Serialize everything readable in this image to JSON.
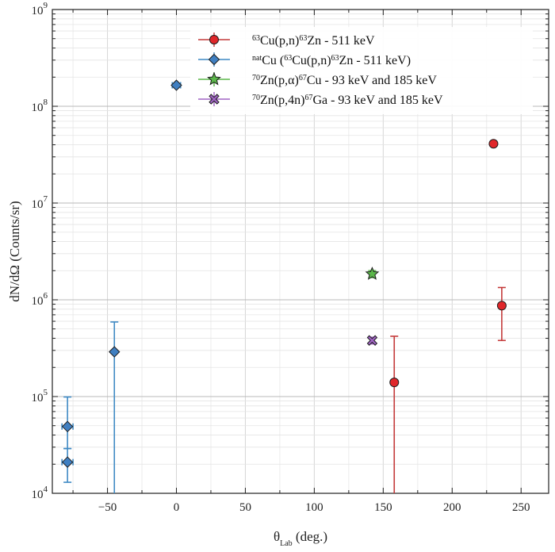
{
  "chart_data": {
    "type": "scatter",
    "xlabel": "θ",
    "xlabel_sub": "Lab",
    "xlabel_unit": " (deg.)",
    "ylabel": "dN/dΩ (Counts/sr)",
    "x_ticks": [
      "−50",
      "0",
      "50",
      "100",
      "150",
      "200",
      "250"
    ],
    "x_tick_values": [
      -50,
      0,
      50,
      100,
      150,
      200,
      250
    ],
    "y_tick_values": [
      10000,
      100000,
      1000000,
      10000000,
      100000000,
      1000000000
    ],
    "y_tick_base": "10",
    "y_tick_exps": [
      "4",
      "5",
      "6",
      "7",
      "8",
      "9"
    ],
    "xlim": [
      -90,
      270
    ],
    "ylim": [
      10000,
      1000000000
    ],
    "yscale": "log",
    "grid": true,
    "legend_position": "top-right",
    "series": [
      {
        "marker": "circle",
        "color": "#e0262a",
        "ecolor": "#c43a3a",
        "legend": [
          {
            "t": "63",
            "s": "sup"
          },
          {
            "t": "Cu(p,n)"
          },
          {
            "t": "63",
            "s": "sup"
          },
          {
            "t": "Zn - 511 keV"
          }
        ],
        "points": [
          {
            "x": 158,
            "y": 140000,
            "ylo": 10000,
            "yhi": 420000
          },
          {
            "x": 230,
            "y": 41000000,
            "ylo": 39000000,
            "yhi": 43000000
          },
          {
            "x": 236,
            "y": 870000,
            "ylo": 380000,
            "yhi": 1340000
          }
        ]
      },
      {
        "marker": "diamond",
        "color": "#3f7fc1",
        "ecolor": "#3f8ac4",
        "legend": [
          {
            "t": "nat",
            "s": "sup"
          },
          {
            "t": "Cu ("
          },
          {
            "t": "63",
            "s": "sup"
          },
          {
            "t": "Cu(p,n)"
          },
          {
            "t": "63",
            "s": "sup"
          },
          {
            "t": "Zn - 511 keV)"
          }
        ],
        "points": [
          {
            "x": -79,
            "y": 49000,
            "ylo": 29000,
            "yhi": 99000,
            "xerr": 4
          },
          {
            "x": -79,
            "y": 21000,
            "ylo": 13000,
            "yhi": 29000,
            "xerr": 4
          },
          {
            "x": -45,
            "y": 290000,
            "ylo": 10000,
            "yhi": 590000
          },
          {
            "x": 0,
            "y": 165000000,
            "ylo": 158000000,
            "yhi": 172000000,
            "xerr": 3
          }
        ]
      },
      {
        "marker": "star",
        "color": "#5bb74a",
        "ecolor": "#5bb74a",
        "legend": [
          {
            "t": "70",
            "s": "sup"
          },
          {
            "t": "Zn(p,α)"
          },
          {
            "t": "67",
            "s": "sup"
          },
          {
            "t": "Cu -  93 keV and 185 keV"
          }
        ],
        "points": [
          {
            "x": 142,
            "y": 1850000,
            "ylo": 1700000,
            "yhi": 2000000
          }
        ]
      },
      {
        "marker": "x",
        "color": "#a064c4",
        "ecolor": "#a064c4",
        "legend": [
          {
            "t": "70",
            "s": "sup"
          },
          {
            "t": "Zn(p,4n)"
          },
          {
            "t": "67",
            "s": "sup"
          },
          {
            "t": "Ga - 93 keV and 185 keV"
          }
        ],
        "points": [
          {
            "x": 142,
            "y": 380000,
            "ylo": 350000,
            "yhi": 410000
          }
        ]
      }
    ]
  }
}
